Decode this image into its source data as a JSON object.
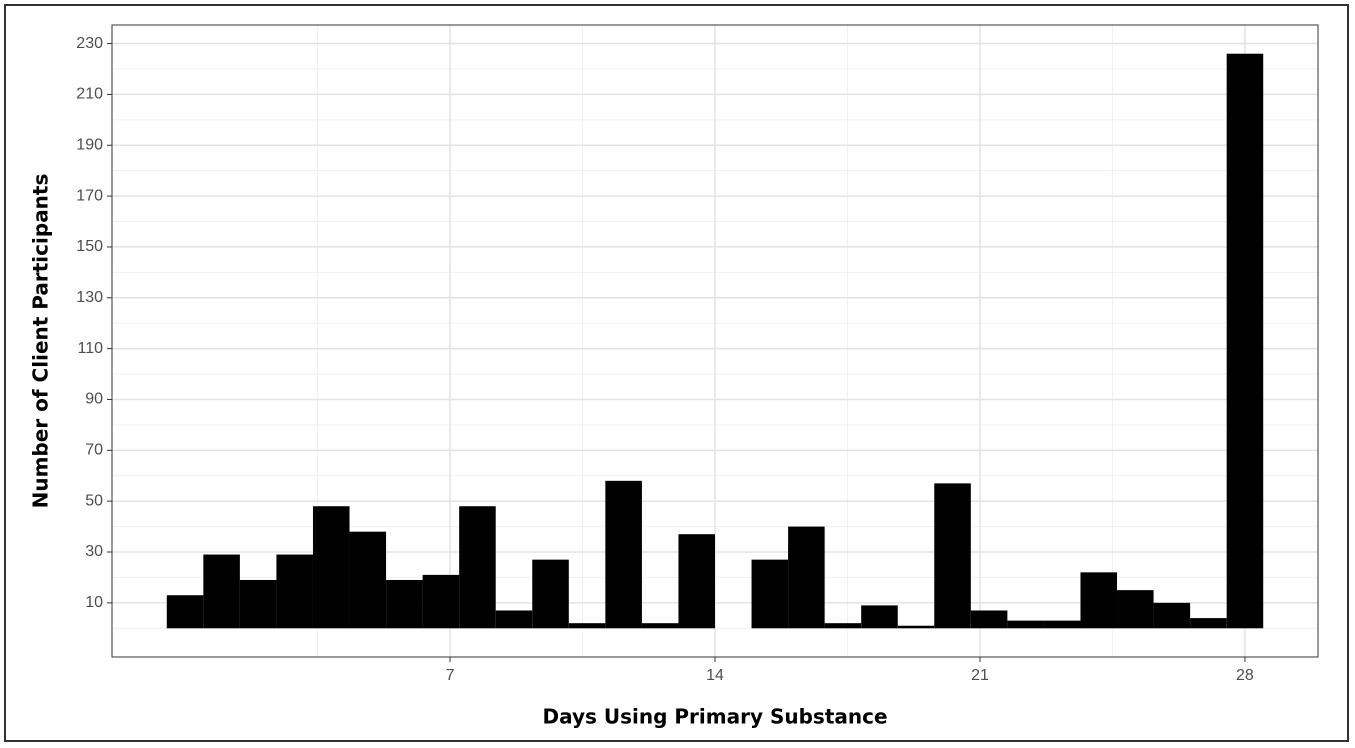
{
  "chart_data": {
    "type": "histogram",
    "x_label": "Days Using Primary Substance",
    "y_label": "Number of Client Participants",
    "bins": [
      -0.4828,
      0.4828,
      1.4483,
      2.4138,
      3.3793,
      4.3448,
      5.3103,
      6.2759,
      7.2414,
      8.2069,
      9.1724,
      10.1379,
      11.1034,
      12.069,
      13.0345,
      14.0,
      14.9655,
      15.931,
      16.8966,
      17.8621,
      18.8276,
      19.7931,
      20.7586,
      21.7241,
      22.6897,
      23.6552,
      24.6207,
      25.5862,
      26.5517,
      27.5172,
      28.4828
    ],
    "values": [
      13,
      29,
      19,
      29,
      48,
      38,
      19,
      21,
      48,
      7,
      27,
      2,
      58,
      2,
      37,
      0,
      27,
      40,
      2,
      9,
      1,
      57,
      7,
      3,
      3,
      22,
      15,
      10,
      4,
      226
    ],
    "color": "#000000",
    "xlim": [
      -1.93,
      29.93
    ],
    "xticks": [
      7,
      14,
      21,
      28
    ],
    "ylim": [
      -11.3,
      237.3
    ],
    "yticks": [
      10,
      30,
      50,
      70,
      90,
      110,
      130,
      150,
      170,
      190,
      210,
      230
    ],
    "grid": true
  }
}
